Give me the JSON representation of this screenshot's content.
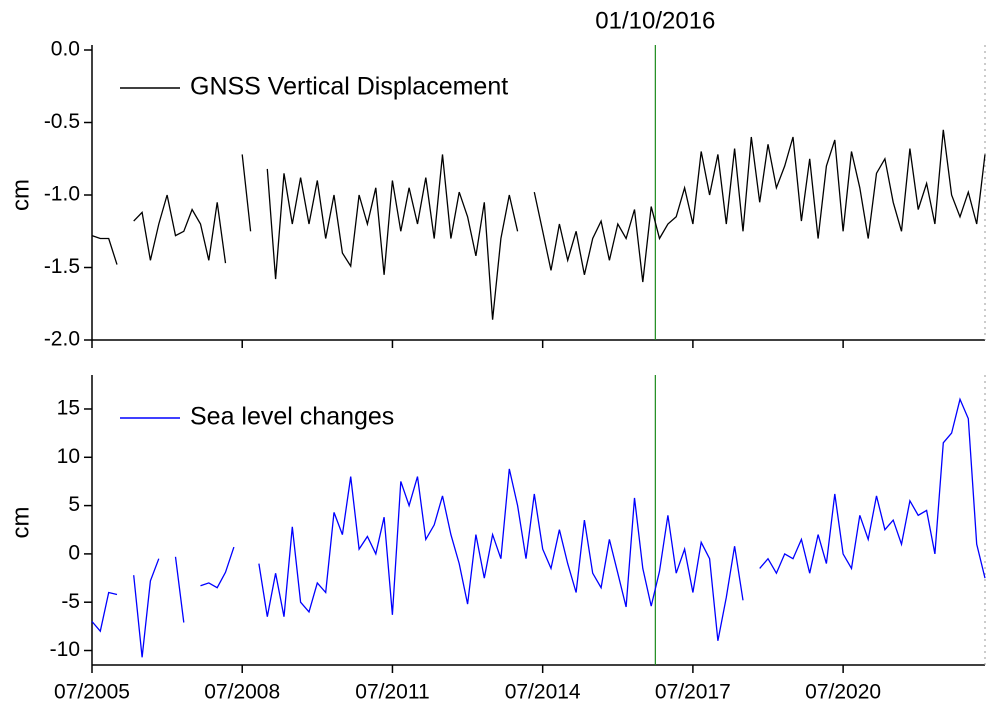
{
  "chart_data": [
    {
      "type": "line",
      "ylabel": "cm",
      "annotation": {
        "x": "2016-10",
        "label": "01/10/2016",
        "color": "#1a8a1a"
      },
      "legend": "upper left",
      "x": [
        "2005-07",
        "2005-09",
        "2005-11",
        "2006-01",
        "2006-03",
        "2006-05",
        "2006-07",
        "2006-09",
        "2006-11",
        "2007-01",
        "2007-03",
        "2007-05",
        "2007-07",
        "2007-09",
        "2007-11",
        "2008-01",
        "2008-03",
        "2008-05",
        "2008-07",
        "2008-09",
        "2008-11",
        "2009-01",
        "2009-03",
        "2009-05",
        "2009-07",
        "2009-09",
        "2009-11",
        "2010-01",
        "2010-03",
        "2010-05",
        "2010-07",
        "2010-09",
        "2010-11",
        "2011-01",
        "2011-03",
        "2011-05",
        "2011-07",
        "2011-09",
        "2011-11",
        "2012-01",
        "2012-03",
        "2012-05",
        "2012-07",
        "2012-09",
        "2012-11",
        "2013-01",
        "2013-03",
        "2013-05",
        "2013-07",
        "2013-09",
        "2013-11",
        "2014-01",
        "2014-03",
        "2014-05",
        "2014-07",
        "2014-09",
        "2014-11",
        "2015-01",
        "2015-03",
        "2015-05",
        "2015-07",
        "2015-09",
        "2015-11",
        "2016-01",
        "2016-03",
        "2016-05",
        "2016-07",
        "2016-09",
        "2016-11",
        "2017-01",
        "2017-03",
        "2017-05",
        "2017-07",
        "2017-09",
        "2017-11",
        "2018-01",
        "2018-03",
        "2018-05",
        "2018-07",
        "2018-09",
        "2018-11",
        "2019-01",
        "2019-03",
        "2019-05",
        "2019-07",
        "2019-09",
        "2019-11",
        "2020-01",
        "2020-03",
        "2020-05",
        "2020-07",
        "2020-09",
        "2020-11",
        "2021-01",
        "2021-03",
        "2021-05",
        "2021-07",
        "2021-09",
        "2021-11",
        "2022-01",
        "2022-03",
        "2022-05",
        "2022-07",
        "2022-09",
        "2022-11",
        "2023-01",
        "2023-03",
        "2023-05"
      ],
      "series": [
        {
          "name": "GNSS Vertical Displacement",
          "color": "#000000",
          "values": [
            -1.28,
            -1.3,
            -1.3,
            -1.48,
            null,
            -1.18,
            -1.12,
            -1.45,
            -1.2,
            -1.0,
            -1.28,
            -1.25,
            -1.1,
            -1.2,
            -1.45,
            -1.05,
            -1.47,
            null,
            -0.72,
            -1.25,
            null,
            -0.82,
            -1.58,
            -0.85,
            -1.2,
            -0.88,
            -1.2,
            -0.9,
            -1.3,
            -1.0,
            -1.4,
            -1.49,
            -1.0,
            -1.2,
            -0.95,
            -1.55,
            -0.9,
            -1.25,
            -0.95,
            -1.2,
            -0.88,
            -1.3,
            -0.72,
            -1.3,
            -0.98,
            -1.15,
            -1.42,
            -1.05,
            -1.86,
            -1.3,
            -1.0,
            -1.25,
            null,
            -0.98,
            -1.25,
            -1.52,
            -1.2,
            -1.45,
            -1.25,
            -1.55,
            -1.3,
            -1.18,
            -1.45,
            -1.2,
            -1.3,
            -1.1,
            -1.6,
            -1.08,
            -1.3,
            -1.2,
            -1.15,
            -0.95,
            -1.2,
            -0.7,
            -1.0,
            -0.72,
            -1.2,
            -0.68,
            -1.25,
            -0.6,
            -1.05,
            -0.65,
            -0.95,
            -0.8,
            -0.6,
            -1.18,
            -0.75,
            -1.3,
            -0.8,
            -0.62,
            -1.25,
            -0.7,
            -0.95,
            -1.3,
            -0.85,
            -0.75,
            -1.05,
            -1.25,
            -0.68,
            -1.1,
            -0.92,
            -1.2,
            -0.55,
            -1.0,
            -1.15,
            -0.98,
            -1.2,
            -0.72
          ]
        }
      ],
      "xlim": [
        "2005-07",
        "2023-05"
      ],
      "ylim": [
        -2.0,
        0.0
      ],
      "yticks": [
        {
          "value": 0,
          "label": "0.0"
        },
        -0.5,
        {
          "value": -1,
          "label": "-1.0"
        },
        -1.5,
        {
          "value": -2,
          "label": "-2.0"
        }
      ]
    },
    {
      "type": "line",
      "ylabel": "cm",
      "legend": "upper left",
      "x": [
        "2005-07",
        "2005-09",
        "2005-11",
        "2006-01",
        "2006-03",
        "2006-05",
        "2006-07",
        "2006-09",
        "2006-11",
        "2007-01",
        "2007-03",
        "2007-05",
        "2007-07",
        "2007-09",
        "2007-11",
        "2008-01",
        "2008-03",
        "2008-05",
        "2008-07",
        "2008-09",
        "2008-11",
        "2009-01",
        "2009-03",
        "2009-05",
        "2009-07",
        "2009-09",
        "2009-11",
        "2010-01",
        "2010-03",
        "2010-05",
        "2010-07",
        "2010-09",
        "2010-11",
        "2011-01",
        "2011-03",
        "2011-05",
        "2011-07",
        "2011-09",
        "2011-11",
        "2012-01",
        "2012-03",
        "2012-05",
        "2012-07",
        "2012-09",
        "2012-11",
        "2013-01",
        "2013-03",
        "2013-05",
        "2013-07",
        "2013-09",
        "2013-11",
        "2014-01",
        "2014-03",
        "2014-05",
        "2014-07",
        "2014-09",
        "2014-11",
        "2015-01",
        "2015-03",
        "2015-05",
        "2015-07",
        "2015-09",
        "2015-11",
        "2016-01",
        "2016-03",
        "2016-05",
        "2016-07",
        "2016-09",
        "2016-11",
        "2017-01",
        "2017-03",
        "2017-05",
        "2017-07",
        "2017-09",
        "2017-11",
        "2018-01",
        "2018-03",
        "2018-05",
        "2018-07",
        "2018-09",
        "2018-11",
        "2019-01",
        "2019-03",
        "2019-05",
        "2019-07",
        "2019-09",
        "2019-11",
        "2020-01",
        "2020-03",
        "2020-05",
        "2020-07",
        "2020-09",
        "2020-11",
        "2021-01",
        "2021-03",
        "2021-05",
        "2021-07",
        "2021-09",
        "2021-11",
        "2022-01",
        "2022-03",
        "2022-05",
        "2022-07",
        "2022-09",
        "2022-11",
        "2023-01",
        "2023-03",
        "2023-05"
      ],
      "series": [
        {
          "name": "Sea level changes",
          "color": "#0000ff",
          "values": [
            -7,
            -8,
            -4,
            -4.2,
            null,
            -2.2,
            -10.7,
            -2.8,
            -0.5,
            null,
            -0.3,
            -7.1,
            null,
            -3.3,
            -3.0,
            -3.5,
            -1.9,
            0.7,
            null,
            null,
            -1,
            -6.5,
            -2,
            -6.5,
            2.8,
            -5,
            -6,
            -3,
            -4,
            4.3,
            2,
            8,
            0.5,
            1.8,
            0,
            3.8,
            -6.3,
            7.5,
            5,
            8,
            1.5,
            3,
            6,
            2,
            -1,
            -5.2,
            2,
            -2.5,
            2,
            -0.5,
            8.8,
            5,
            -0.5,
            6.2,
            0.5,
            -1.5,
            2.5,
            -1,
            -4,
            3.5,
            -2,
            -3.5,
            1.5,
            -2,
            -5.5,
            5.8,
            -1.5,
            -5.4,
            -1.8,
            4,
            -2,
            0.5,
            -4,
            1.2,
            -0.5,
            -9,
            -4.5,
            0.8,
            -4.8,
            null,
            -1.5,
            -0.5,
            -2,
            0,
            -0.5,
            1.5,
            -2,
            2,
            -1,
            6.2,
            0,
            -1.5,
            4,
            1.5,
            6,
            2.5,
            3.5,
            1,
            5.5,
            4,
            4.5,
            0,
            11.5,
            12.5,
            16,
            14,
            1,
            -2.5
          ]
        }
      ],
      "xlim": [
        "2005-07",
        "2023-05"
      ],
      "xticks": [
        {
          "value": "2005-07",
          "label": "07/2005"
        },
        {
          "value": "2008-07",
          "label": "07/2008"
        },
        {
          "value": "2011-07",
          "label": "07/2011"
        },
        {
          "value": "2014-07",
          "label": "07/2014"
        },
        {
          "value": "2017-07",
          "label": "07/2017"
        },
        {
          "value": "2020-07",
          "label": "07/2020"
        }
      ],
      "ylim": [
        -11.5,
        18
      ],
      "yticks": [
        -10,
        -5,
        0,
        5,
        10,
        15
      ]
    }
  ]
}
